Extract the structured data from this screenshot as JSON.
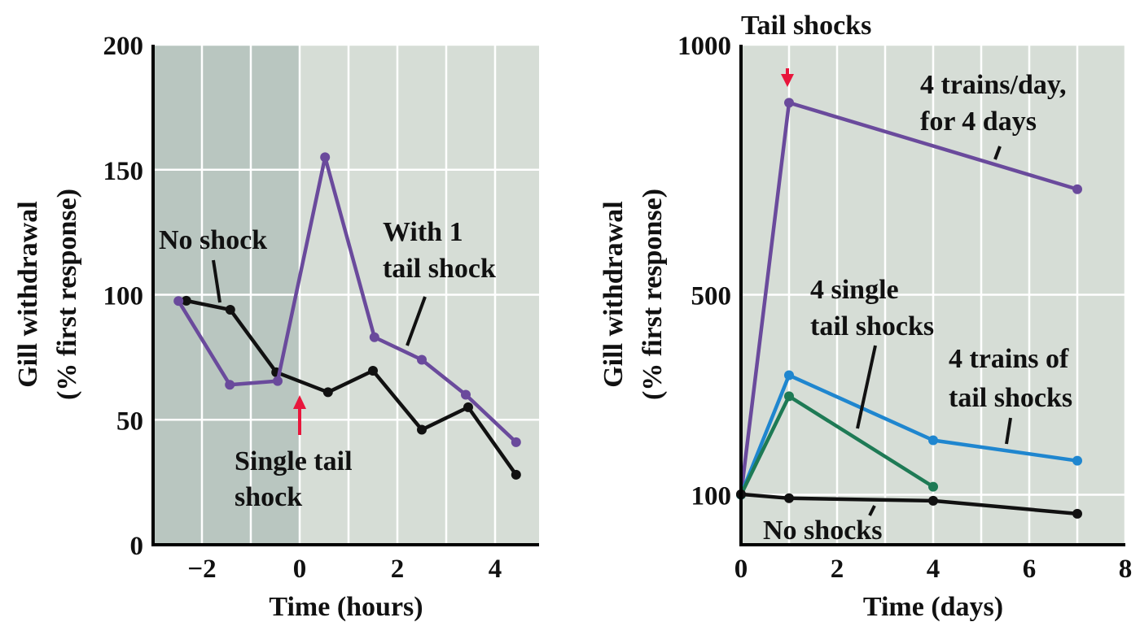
{
  "colors": {
    "plot_bg": "#d6ddd6",
    "shaded_bg": "#b9c6c0",
    "grid": "#ffffff",
    "purple": "#6a4a9c",
    "black": "#111111",
    "blue": "#1f86cf",
    "green": "#1e7a55",
    "arrow": "#e8163c"
  },
  "chart_data": [
    {
      "type": "line",
      "xlabel": "Time (hours)",
      "ylabel_lines": [
        "Gill withdrawal",
        "(% first response)"
      ],
      "xlim": [
        -3,
        4.9
      ],
      "ylim": [
        0,
        200
      ],
      "xticks": [
        -2,
        0,
        2,
        4
      ],
      "xtick_labels": [
        "−2",
        "0",
        "2",
        "4"
      ],
      "yticks": [
        0,
        50,
        100,
        150,
        200
      ],
      "ytick_labels": [
        "0",
        "50",
        "100",
        "150",
        "200"
      ],
      "grid": true,
      "shaded_region_x": [
        -3,
        0
      ],
      "series": [
        {
          "name": "No shock",
          "color_key": "black",
          "x": [
            -2.32,
            -1.42,
            -0.48,
            0.58,
            1.5,
            2.5,
            3.45,
            4.43
          ],
          "y": [
            97.6,
            94,
            69,
            61,
            69.6,
            46,
            55,
            28
          ]
        },
        {
          "name": "With 1 tail shock",
          "color_key": "purple",
          "x": [
            -2.48,
            -1.43,
            -0.45,
            0.52,
            1.53,
            2.5,
            3.4,
            4.43
          ],
          "y": [
            97.5,
            64,
            65.5,
            155,
            83,
            74,
            60,
            41
          ]
        }
      ],
      "annotations": {
        "no_shock": [
          "No shock"
        ],
        "with_shock": [
          "With 1",
          "tail shock"
        ],
        "event": [
          "Single tail",
          "shock"
        ]
      }
    },
    {
      "type": "line",
      "xlabel": "Time (days)",
      "ylabel_lines": [
        "Gill withdrawal",
        "(% first response)"
      ],
      "xlim": [
        0,
        8
      ],
      "ylim": [
        0,
        1000
      ],
      "xticks": [
        0,
        2,
        4,
        6,
        8
      ],
      "xtick_labels": [
        "0",
        "2",
        "4",
        "6",
        "8"
      ],
      "yticks": [
        100,
        500,
        1000
      ],
      "ytick_labels": [
        "100",
        "500",
        "1000"
      ],
      "grid": true,
      "series": [
        {
          "name": "4 trains/day, for 4 days",
          "color_key": "purple",
          "x": [
            0,
            1,
            7
          ],
          "y": [
            100,
            884,
            711
          ]
        },
        {
          "name": "4 trains of tail shocks",
          "color_key": "blue",
          "x": [
            0,
            1,
            4,
            7
          ],
          "y": [
            100,
            339,
            209,
            168
          ]
        },
        {
          "name": "4 single tail shocks",
          "color_key": "green",
          "x": [
            0,
            1,
            4
          ],
          "y": [
            100,
            297,
            116
          ]
        },
        {
          "name": "No shocks",
          "color_key": "black",
          "x": [
            0,
            1,
            4,
            7
          ],
          "y": [
            101,
            93,
            88,
            62
          ]
        }
      ],
      "annotations": {
        "event": [
          "Tail shocks"
        ],
        "trains_day": [
          "4 trains/day,",
          "for 4 days"
        ],
        "single": [
          "4 single",
          "tail shocks"
        ],
        "trains": [
          "4 trains of",
          "tail shocks"
        ],
        "none": [
          "No shocks"
        ]
      }
    }
  ]
}
